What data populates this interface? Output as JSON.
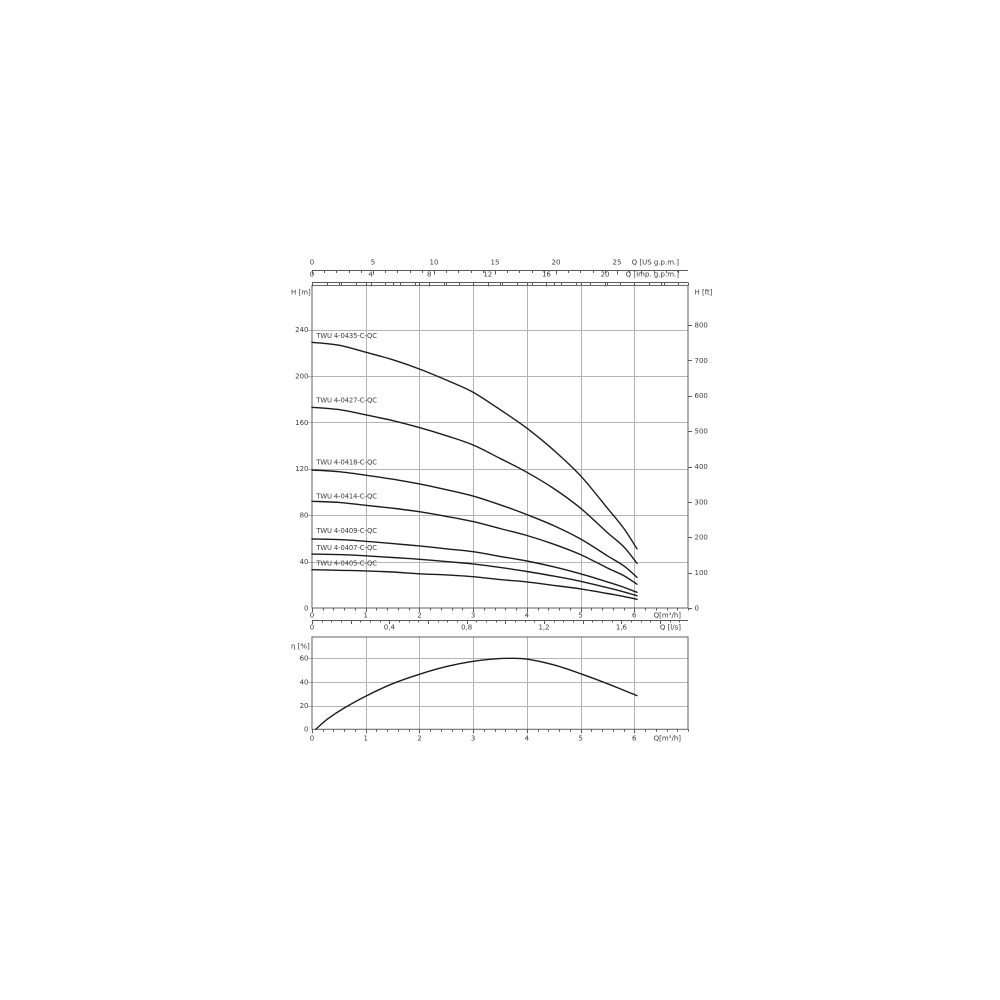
{
  "colors": {
    "background": "#ffffff",
    "grid": "#b4b4b4",
    "frame": "#6e6e6e",
    "axis": "#5a5a5a",
    "curve": "#1c1c1c",
    "text": "#3c3c3c"
  },
  "chart_data": [
    {
      "id": "head_curves",
      "type": "line",
      "title": "",
      "ylabel_left": "H [m]",
      "ylabel_right": "H [ft]",
      "xlabel": "Q[m³/h]",
      "xlim": [
        0,
        7
      ],
      "ylim_m": [
        0,
        278
      ],
      "ft_per_m": 3.28084,
      "grid": true,
      "x_ticks_labeled": [
        0,
        1,
        2,
        3,
        4,
        5,
        6
      ],
      "x_minor_step_bottom": 0.2,
      "x_minor_step_top_border": 0.5,
      "y_ticks_m": [
        0,
        40,
        80,
        120,
        160,
        200,
        240
      ],
      "y_ticks_ft": [
        0,
        100,
        200,
        300,
        400,
        500,
        600,
        700,
        800
      ],
      "top_axes": [
        {
          "label": "Q [US g.p.m.]",
          "m3h_per_unit": 0.227125,
          "labeled_ticks": [
            0,
            5,
            10,
            15,
            20,
            25
          ],
          "minor_step": 1,
          "max_unit": 30
        },
        {
          "label": "Q [Imp. g.p.m.]",
          "m3h_per_unit": 0.272766,
          "labeled_ticks": [
            0,
            4,
            8,
            12,
            16,
            20
          ],
          "minor_step": 1,
          "max_unit": 25
        }
      ],
      "secondary_bottom_axis": {
        "label": "Q [l/s]",
        "m3h_per_unit": 3.6,
        "labeled_values": [
          0,
          0.4,
          0.8,
          1.2,
          1.6
        ],
        "labeled_strings": [
          "0",
          "0,4",
          "0,8",
          "1,2",
          "1,6"
        ],
        "minor_step": 0.05,
        "medium_step": 0.2,
        "max_unit": 1.9
      },
      "series": [
        {
          "name": "TWU 4-0435-C-QC",
          "label_q": 0.08,
          "label_h": 234.5,
          "points_q_h": [
            [
              0,
              229
            ],
            [
              0.5,
              226.5
            ],
            [
              1,
              220.5
            ],
            [
              1.5,
              214
            ],
            [
              2,
              206
            ],
            [
              2.5,
              196.5
            ],
            [
              3,
              186
            ],
            [
              3.5,
              171
            ],
            [
              4,
              155
            ],
            [
              4.5,
              136
            ],
            [
              5,
              114
            ],
            [
              5.5,
              86
            ],
            [
              5.8,
              69
            ],
            [
              6.05,
              51
            ]
          ]
        },
        {
          "name": "TWU 4-0427-C-QC",
          "label_q": 0.08,
          "label_h": 179,
          "points_q_h": [
            [
              0,
              173
            ],
            [
              0.5,
              171
            ],
            [
              1,
              166.5
            ],
            [
              1.5,
              161.5
            ],
            [
              2,
              155.5
            ],
            [
              2.5,
              148.5
            ],
            [
              3,
              140.5
            ],
            [
              3.5,
              129
            ],
            [
              4,
              117
            ],
            [
              4.5,
              103
            ],
            [
              5,
              86
            ],
            [
              5.5,
              65
            ],
            [
              5.8,
              53
            ],
            [
              6.05,
              38.5
            ]
          ]
        },
        {
          "name": "TWU 4-0418-C-QC",
          "label_q": 0.08,
          "label_h": 125.5,
          "points_q_h": [
            [
              0,
              119
            ],
            [
              0.5,
              117.5
            ],
            [
              1,
              114.5
            ],
            [
              1.5,
              111
            ],
            [
              2,
              107
            ],
            [
              2.5,
              102
            ],
            [
              3,
              96.5
            ],
            [
              3.5,
              89
            ],
            [
              4,
              80.5
            ],
            [
              4.5,
              71
            ],
            [
              5,
              59.5
            ],
            [
              5.5,
              45
            ],
            [
              5.8,
              36.5
            ],
            [
              6.05,
              26.5
            ]
          ]
        },
        {
          "name": "TWU 4-0414-C-QC",
          "label_q": 0.08,
          "label_h": 96.5,
          "points_q_h": [
            [
              0,
              92
            ],
            [
              0.5,
              91
            ],
            [
              1,
              88.5
            ],
            [
              1.5,
              86
            ],
            [
              2,
              83
            ],
            [
              2.5,
              79
            ],
            [
              3,
              74.5
            ],
            [
              3.5,
              68.5
            ],
            [
              4,
              62.5
            ],
            [
              4.5,
              55
            ],
            [
              5,
              46
            ],
            [
              5.5,
              34.5
            ],
            [
              5.8,
              28
            ],
            [
              6.05,
              20.5
            ]
          ]
        },
        {
          "name": "TWU 4-0409-C-QC",
          "label_q": 0.08,
          "label_h": 66.5,
          "points_q_h": [
            [
              0,
              59.5
            ],
            [
              0.5,
              59
            ],
            [
              1,
              57.5
            ],
            [
              1.5,
              55.5
            ],
            [
              2,
              53.5
            ],
            [
              2.5,
              51
            ],
            [
              3,
              48.5
            ],
            [
              3.5,
              44.5
            ],
            [
              4,
              40.5
            ],
            [
              4.5,
              35.5
            ],
            [
              5,
              29.5
            ],
            [
              5.5,
              22.5
            ],
            [
              5.8,
              18
            ],
            [
              6.05,
              13.5
            ]
          ]
        },
        {
          "name": "TWU 4-0407-C-QC",
          "label_q": 0.08,
          "label_h": 52,
          "points_q_h": [
            [
              0,
              46.5
            ],
            [
              0.5,
              46
            ],
            [
              1,
              45
            ],
            [
              1.5,
              43.5
            ],
            [
              2,
              42
            ],
            [
              2.5,
              40
            ],
            [
              3,
              38
            ],
            [
              3.5,
              35
            ],
            [
              4,
              31.5
            ],
            [
              4.5,
              27.5
            ],
            [
              5,
              23
            ],
            [
              5.5,
              17.5
            ],
            [
              5.8,
              14
            ],
            [
              6.05,
              10.5
            ]
          ]
        },
        {
          "name": "TWU 4-0405-C-QC",
          "label_q": 0.08,
          "label_h": 38.5,
          "points_q_h": [
            [
              0,
              33
            ],
            [
              0.5,
              32.5
            ],
            [
              1,
              32
            ],
            [
              1.5,
              31
            ],
            [
              2,
              29.5
            ],
            [
              2.5,
              28.5
            ],
            [
              3,
              27
            ],
            [
              3.5,
              24.5
            ],
            [
              4,
              22.5
            ],
            [
              4.5,
              19.5
            ],
            [
              5,
              16.5
            ],
            [
              5.5,
              12.5
            ],
            [
              5.8,
              10
            ],
            [
              6.05,
              7.5
            ]
          ]
        }
      ]
    },
    {
      "id": "efficiency_curve",
      "type": "line",
      "title": "",
      "ylabel": "η [%]",
      "xlabel": "Q[m³/h]",
      "xlim": [
        0,
        7
      ],
      "ylim": [
        0,
        78
      ],
      "grid": true,
      "x_ticks_labeled": [
        0,
        1,
        2,
        3,
        4,
        5,
        6
      ],
      "x_minor_step_bottom": 0.2,
      "y_ticks": [
        0,
        20,
        40,
        60
      ],
      "series": [
        {
          "name": "efficiency",
          "points_q_eta": [
            [
              0.07,
              0
            ],
            [
              0.3,
              9
            ],
            [
              0.6,
              18
            ],
            [
              1,
              28
            ],
            [
              1.5,
              38.5
            ],
            [
              2,
              46.5
            ],
            [
              2.5,
              53
            ],
            [
              3,
              57.5
            ],
            [
              3.4,
              59.5
            ],
            [
              3.7,
              60
            ],
            [
              4,
              59.3
            ],
            [
              4.5,
              54.5
            ],
            [
              5,
              47
            ],
            [
              5.5,
              38.5
            ],
            [
              6.05,
              28.5
            ]
          ]
        }
      ]
    }
  ]
}
